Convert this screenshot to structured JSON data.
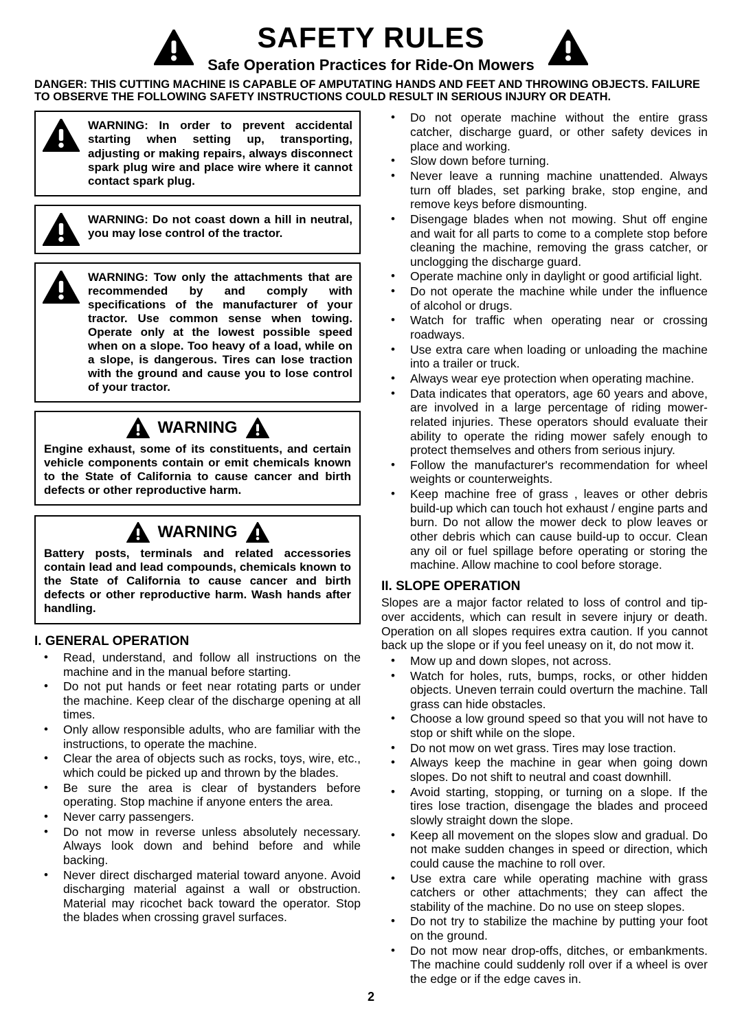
{
  "header": {
    "title": "SAFETY RULES",
    "subtitle": "Safe Operation Practices for Ride-On Mowers",
    "danger": "DANGER:  THIS CUTTING MACHINE IS CAPABLE OF AMPUTATING HANDS AND FEET AND THROWING OBJECTS.  FAILURE TO OBSERVE THE FOLLOWING SAFETY INSTRUCTIONS COULD RESULT IN SERIOUS INJURY OR DEATH."
  },
  "left": {
    "warn1": "WARNING:  In order to prevent accidental starting when setting up, transporting, adjusting or making repairs, always disconnect spark plug wire and place wire where it cannot contact spark plug.",
    "warn2": "WARNING:  Do not coast down a hill in neutral, you may lose control of the tractor.",
    "warn3": "WARNING: Tow only the attachments that are recommended by and comply with specifications of the manufacturer of your tractor. Use common sense when towing. Operate only at the lowest possible speed when on a slope.  Too heavy of a load, while on a slope, is dangerous.  Tires can lose traction with the ground and cause you to lose control of your tractor.",
    "warn4_title": "WARNING",
    "warn4": "Engine exhaust, some of its constituents, and certain vehicle components contain or emit chemicals known to the State of California to cause cancer and birth defects or other reproductive harm.",
    "warn5_title": "WARNING",
    "warn5": "Battery posts, terminals and related accessories contain lead and lead compounds, chemicals known to the State of California to cause cancer and birth defects or other reproductive harm. Wash hands after handling.",
    "section1_title": "I. GENERAL OPERATION",
    "section1_items": [
      "Read, understand, and follow all instructions on the machine and in the manual before starting.",
      "Do not put hands or feet near rotating parts or under the machine. Keep clear of the discharge opening at all times.",
      "Only allow responsible adults, who are familiar with the instructions, to operate the machine.",
      "Clear the area of objects such as  rocks, toys, wire, etc., which could be picked up and thrown by the blades.",
      "Be sure the area is clear of bystanders before operating.  Stop machine if anyone enters the area.",
      "Never carry passengers.",
      "Do not mow in reverse unless absolutely necessary. Always look down and behind before and while backing.",
      "Never direct discharged material toward anyone. Avoid discharging material against a wall or obstruction. Material may ricochet back toward the operator. Stop the blades when crossing gravel surfaces."
    ]
  },
  "right": {
    "section1_cont_items": [
      "Do not operate machine without the entire grass catcher, discharge guard, or other safety devices in place and working.",
      "Slow down before turning.",
      "Never leave a running machine unattended.  Always turn off blades, set parking brake, stop engine, and remove keys before dismounting.",
      "Disengage blades when not mowing. Shut off engine and wait for all parts to come to a complete stop before cleaning the machine, removing the grass catcher, or unclogging the discharge guard.",
      "Operate machine only in daylight or good artificial light.",
      "Do not operate the machine while under the influence of alcohol or drugs.",
      "Watch for traffic when operating near or crossing roadways.",
      "Use extra care when loading or unloading the machine into a trailer or truck.",
      "Always wear eye protection when operating machine.",
      "Data indicates that operators, age 60 years and above, are involved in a large percentage of riding mower-related injuries.  These operators should evaluate their ability to operate the riding mower safely enough to protect themselves and others from serious injury.",
      "Follow the manufacturer's recommendation for wheel weights or counterweights.",
      "Keep machine free of grass , leaves or other debris build-up which can touch hot exhaust / engine parts and burn. Do not allow the mower deck to plow leaves or other debris which can cause build-up to occur. Clean any oil or fuel spillage before operating or storing the machine. Allow machine to cool before storage."
    ],
    "section2_title": "II. SLOPE OPERATION",
    "section2_intro": "Slopes are a major factor related to loss of control and tip-over accidents, which can result in severe injury or death.  Operation on all slopes requires extra caution.  If you cannot back up the slope or if you feel uneasy on it, do not mow it.",
    "section2_items": [
      "Mow up and down slopes, not across.",
      "Watch for holes, ruts, bumps, rocks, or other hidden objects.  Uneven terrain could overturn the machine.  Tall grass can hide obstacles.",
      "Choose a low ground speed so that you will not have to stop or shift while on the slope.",
      "Do not mow on wet grass. Tires may lose traction.",
      "Always keep the machine in gear when going down slopes. Do not shift to neutral and coast downhill.",
      "Avoid starting, stopping, or turning on a slope.  If the tires lose traction,  disengage the blades and proceed slowly straight down the slope.",
      "Keep all movement on the slopes slow and gradual.  Do not make sudden changes in speed or direction, which could cause the machine to roll over.",
      "Use extra care while operating machine with grass catchers or other attachments; they can affect the stability of the machine. Do no use on steep slopes.",
      "Do not  try to stabilize the machine by putting your foot on the ground.",
      "Do not mow near drop-offs, ditches, or embankments. The machine could suddenly roll over if a wheel is over the edge or if the edge caves in."
    ]
  },
  "page_number": "2",
  "style": {
    "icon_fill": "#000000",
    "icon_mark": "#ffffff",
    "border_color": "#000000",
    "text_color": "#000000",
    "bg_color": "#ffffff"
  }
}
